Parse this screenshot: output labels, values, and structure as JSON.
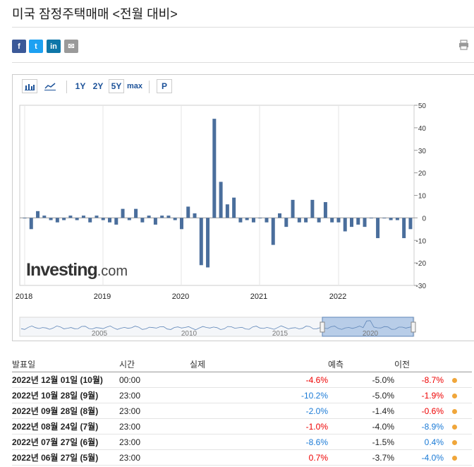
{
  "page": {
    "title": "미국 잠정주택매매 <전월 대비>"
  },
  "share": [
    {
      "name": "facebook-icon",
      "glyph": "f",
      "color": "#3b5998"
    },
    {
      "name": "twitter-icon",
      "glyph": "t",
      "color": "#1da1f2"
    },
    {
      "name": "linkedin-icon",
      "glyph": "in",
      "color": "#0e76a8"
    },
    {
      "name": "email-icon",
      "glyph": "✉",
      "color": "#9a9a9a"
    }
  ],
  "toolbar": {
    "range_1y": "1Y",
    "range_2y": "2Y",
    "range_5y": "5Y",
    "range_max": "max",
    "p_label": "P",
    "active_range": "5Y"
  },
  "logo": {
    "text": "Investing",
    "suffix": ".com"
  },
  "chart_data": {
    "type": "bar",
    "color": "#4a6e9c",
    "yticks": [
      50,
      40,
      30,
      20,
      10,
      0,
      -10,
      -20,
      -30
    ],
    "ylim": [
      -30,
      50
    ],
    "xticks": [
      "2018",
      "2019",
      "2020",
      "2021",
      "2022"
    ],
    "values": [
      0,
      -5,
      3,
      1,
      -1,
      -2,
      -1,
      1,
      -1,
      1,
      -2,
      1,
      -1,
      -2,
      -3,
      4,
      -1,
      4,
      -2,
      1,
      -3,
      1,
      1,
      -1,
      -5,
      5,
      2,
      -21,
      -22,
      44,
      16,
      6,
      9,
      -2,
      -1,
      -2,
      0,
      -2,
      -12,
      2,
      -4,
      8,
      -2,
      -2,
      8,
      -2,
      7,
      -2,
      -2,
      -6,
      -4,
      -3,
      -4,
      0,
      -9,
      0,
      -1,
      -1,
      -9,
      -5
    ],
    "navigator": {
      "labels": [
        "2005",
        "2010",
        "2015",
        "2020"
      ]
    }
  },
  "table": {
    "headers": {
      "date": "발표일",
      "time": "시간",
      "actual": "실제",
      "forecast": "예측",
      "previous": "이전"
    },
    "rows": [
      {
        "date": "2022년 12월 01일 (10월)",
        "time": "00:00",
        "actual": "-4.6%",
        "forecast": "-5.0%",
        "previous": "-8.7%",
        "actual_cls": "neg",
        "prev_cls": "neg"
      },
      {
        "date": "2022년 10월 28일 (9월)",
        "time": "23:00",
        "actual": "-10.2%",
        "forecast": "-5.0%",
        "previous": "-1.9%",
        "actual_cls": "pos",
        "prev_cls": "neg"
      },
      {
        "date": "2022년 09월 28일 (8월)",
        "time": "23:00",
        "actual": "-2.0%",
        "forecast": "-1.4%",
        "previous": "-0.6%",
        "actual_cls": "pos",
        "prev_cls": "neg"
      },
      {
        "date": "2022년 08월 24일 (7월)",
        "time": "23:00",
        "actual": "-1.0%",
        "forecast": "-4.0%",
        "previous": "-8.9%",
        "actual_cls": "neg",
        "prev_cls": "pos"
      },
      {
        "date": "2022년 07월 27일 (6월)",
        "time": "23:00",
        "actual": "-8.6%",
        "forecast": "-1.5%",
        "previous": "0.4%",
        "actual_cls": "pos",
        "prev_cls": "pos"
      },
      {
        "date": "2022년 06월 27일 (5월)",
        "time": "23:00",
        "actual": "0.7%",
        "forecast": "-3.7%",
        "previous": "-4.0%",
        "actual_cls": "neg",
        "prev_cls": "pos"
      }
    ]
  }
}
